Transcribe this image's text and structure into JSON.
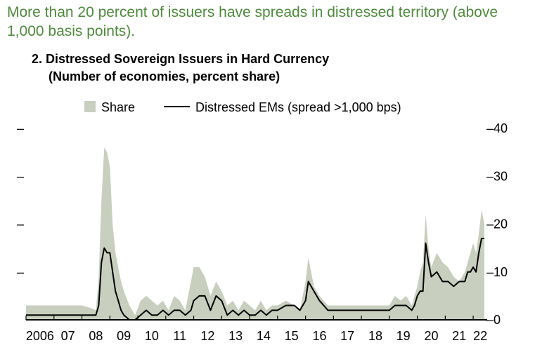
{
  "headline": "More than 20 percent of issuers have spreads in distressed territory (above 1,000 basis points).",
  "chart_data": {
    "type": "area+line",
    "title": "2. Distressed Sovereign Issuers in Hard Currency",
    "subtitle": "(Number of economies, percent share)",
    "legend": [
      {
        "name": "Share",
        "style": "area",
        "color": "#c9cfbe"
      },
      {
        "name": "Distressed EMs (spread >1,000 bps)",
        "style": "line",
        "color": "#000000"
      }
    ],
    "legend_position": "top",
    "x_tick_labels": [
      "2006",
      "07",
      "08",
      "09",
      "10",
      "11",
      "12",
      "13",
      "14",
      "15",
      "16",
      "17",
      "18",
      "19",
      "20",
      "21",
      "22"
    ],
    "xlim": [
      2006.0,
      2022.5
    ],
    "y_right_ticks": [
      "0",
      "10",
      "20",
      "30",
      "40"
    ],
    "ylim": [
      0,
      40
    ],
    "left_axis_ticks": [
      "–",
      "–",
      "–",
      "–"
    ],
    "series": [
      {
        "name": "Share",
        "x": [
          2006.0,
          2007.0,
          2007.5,
          2008.0,
          2008.3,
          2008.5,
          2008.6,
          2008.7,
          2008.8,
          2008.9,
          2009.0,
          2009.1,
          2009.2,
          2009.3,
          2009.4,
          2009.5,
          2009.7,
          2009.9,
          2010.1,
          2010.3,
          2010.5,
          2010.7,
          2010.9,
          2011.1,
          2011.3,
          2011.5,
          2011.7,
          2011.9,
          2012.0,
          2012.2,
          2012.4,
          2012.6,
          2012.8,
          2013.0,
          2013.2,
          2013.4,
          2013.6,
          2013.8,
          2014.0,
          2014.2,
          2014.4,
          2014.6,
          2014.8,
          2015.0,
          2015.3,
          2015.6,
          2015.8,
          2016.0,
          2016.1,
          2016.3,
          2016.5,
          2016.8,
          2017.2,
          2017.6,
          2018.0,
          2018.4,
          2018.8,
          2019.0,
          2019.2,
          2019.4,
          2019.6,
          2019.8,
          2019.9,
          2020.0,
          2020.1,
          2020.2,
          2020.3,
          2020.4,
          2020.5,
          2020.7,
          2020.9,
          2021.1,
          2021.3,
          2021.5,
          2021.7,
          2021.8,
          2021.9,
          2022.0,
          2022.1,
          2022.2,
          2022.3,
          2022.4
        ],
        "values": [
          3,
          3,
          3,
          3,
          2.5,
          2,
          9,
          25,
          36,
          35,
          32,
          20,
          14,
          11,
          8,
          6,
          3,
          1,
          4,
          5,
          4,
          3,
          4,
          2,
          5,
          4,
          2,
          8,
          11,
          11,
          9,
          5,
          8,
          6,
          3,
          4,
          2,
          4,
          3,
          2,
          4,
          2,
          3,
          3,
          4,
          3,
          2,
          8,
          13,
          7,
          5,
          3,
          3,
          3,
          3,
          3,
          3,
          3,
          5,
          4,
          5,
          3,
          5,
          7,
          10,
          12,
          22,
          15,
          11,
          14,
          12,
          11,
          9,
          8,
          10,
          12,
          14,
          16,
          14,
          18,
          23,
          20
        ]
      },
      {
        "name": "Distressed EMs (spread >1,000 bps)",
        "x": [
          2006.0,
          2007.0,
          2007.5,
          2008.0,
          2008.3,
          2008.5,
          2008.6,
          2008.7,
          2008.8,
          2008.9,
          2009.0,
          2009.1,
          2009.2,
          2009.3,
          2009.4,
          2009.5,
          2009.7,
          2009.9,
          2010.1,
          2010.3,
          2010.5,
          2010.7,
          2010.9,
          2011.1,
          2011.3,
          2011.5,
          2011.7,
          2011.9,
          2012.0,
          2012.2,
          2012.4,
          2012.6,
          2012.8,
          2013.0,
          2013.2,
          2013.4,
          2013.6,
          2013.8,
          2014.0,
          2014.2,
          2014.4,
          2014.6,
          2014.8,
          2015.0,
          2015.3,
          2015.6,
          2015.8,
          2016.0,
          2016.1,
          2016.3,
          2016.5,
          2016.8,
          2017.2,
          2017.6,
          2018.0,
          2018.4,
          2018.8,
          2019.0,
          2019.2,
          2019.4,
          2019.6,
          2019.8,
          2019.9,
          2020.0,
          2020.1,
          2020.2,
          2020.3,
          2020.4,
          2020.5,
          2020.7,
          2020.9,
          2021.1,
          2021.3,
          2021.5,
          2021.7,
          2021.8,
          2021.9,
          2022.0,
          2022.1,
          2022.2,
          2022.3,
          2022.4
        ],
        "values": [
          1,
          1,
          1,
          1,
          1,
          1,
          3,
          12,
          15,
          14,
          14,
          10,
          6,
          4,
          2,
          1,
          0,
          0,
          1,
          2,
          1,
          1,
          2,
          1,
          2,
          2,
          1,
          2,
          4,
          5,
          5,
          2,
          5,
          4,
          1,
          2,
          1,
          2,
          1,
          1,
          2,
          1,
          2,
          2,
          3,
          3,
          2,
          4,
          8,
          6,
          4,
          2,
          2,
          2,
          2,
          2,
          2,
          2,
          3,
          3,
          3,
          2,
          3,
          5,
          6,
          6,
          16,
          12,
          9,
          10,
          8,
          8,
          7,
          8,
          8,
          10,
          10,
          11,
          10,
          14,
          17,
          17
        ]
      }
    ]
  }
}
